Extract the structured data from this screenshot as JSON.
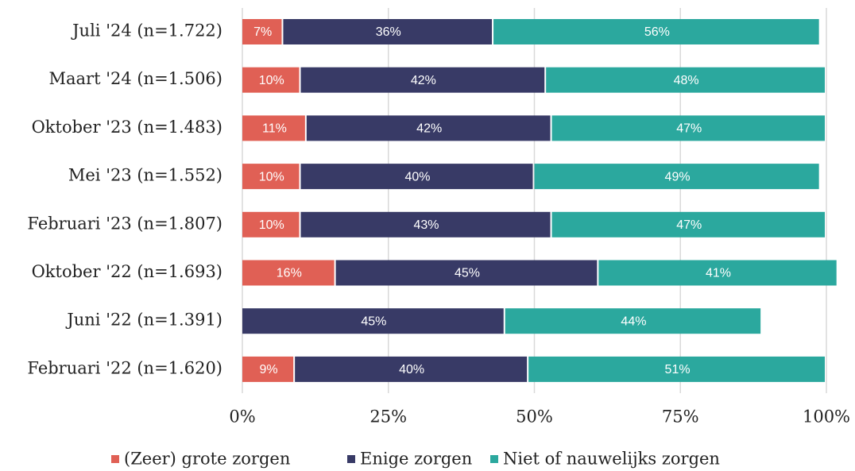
{
  "chart_data": {
    "type": "stacked_barh",
    "categories": [
      "Juli '24 (n=1.722)",
      "Maart '24 (n=1.506)",
      "Oktober '23 (n=1.483)",
      "Mei '23 (n=1.552)",
      "Februari '23 (n=1.807)",
      "Oktober '22 (n=1.693)",
      "Juni '22 (n=1.391)",
      "Februari '22 (n=1.620)"
    ],
    "series": [
      {
        "name": "(Zeer) grote zorgen",
        "color": "#e06055",
        "values": [
          7,
          10,
          11,
          10,
          10,
          16,
          null,
          9
        ],
        "value_labels": [
          "7%",
          "10%",
          "11%",
          "10%",
          "10%",
          "16%",
          null,
          "9%"
        ]
      },
      {
        "name": "Enige zorgen",
        "color": "#383a66",
        "values": [
          36,
          42,
          42,
          40,
          43,
          45,
          45,
          40
        ],
        "value_labels": [
          "36%",
          "42%",
          "42%",
          "40%",
          "43%",
          "45%",
          "45%",
          "40%"
        ]
      },
      {
        "name": "Niet of nauwelijks zorgen",
        "color": "#2ba89e",
        "values": [
          56,
          48,
          47,
          49,
          47,
          41,
          44,
          51
        ],
        "value_labels": [
          "56%",
          "48%",
          "47%",
          "49%",
          "47%",
          "41%",
          "44%",
          "51%"
        ]
      }
    ],
    "xlim": [
      0,
      100
    ],
    "xticks": [
      {
        "value": 0,
        "label": "0%"
      },
      {
        "value": 25,
        "label": "25%"
      },
      {
        "value": 50,
        "label": "50%"
      },
      {
        "value": 75,
        "label": "75%"
      },
      {
        "value": 100,
        "label": "100%"
      }
    ],
    "grid": true,
    "legend": "bottom"
  }
}
